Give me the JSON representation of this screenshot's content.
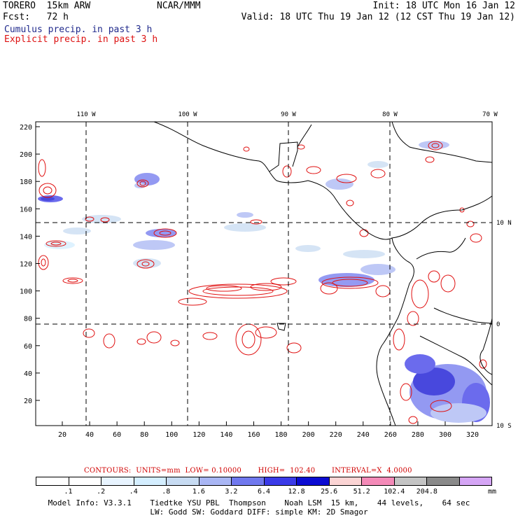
{
  "header": {
    "model_line": "TORERO  15km ARW",
    "org": "NCAR/MMM",
    "init": "Init: 18 UTC Mon 16 Jan 12",
    "fcst": "Fcst:   72 h",
    "valid": "Valid: 18 UTC Thu 19 Jan 12 (12 CST Thu 19 Jan 12)",
    "cumulus_label": "Cumulus precip. in past 3 h",
    "explicit_label": "Explicit precip. in past 3 h"
  },
  "colors": {
    "cumulus_text": "#202a8c",
    "explicit_text": "#dd1111",
    "contour": "#e01010",
    "coast": "#000000"
  },
  "map": {
    "top_lon_labels": [
      "110 W",
      "100 W",
      "90 W",
      "80 W",
      "70 W"
    ],
    "right_lat_labels": [
      "10 N",
      "0",
      "10 S"
    ],
    "y_ticks": [
      "220",
      "200",
      "180",
      "160",
      "140",
      "120",
      "100",
      "80",
      "60",
      "40",
      "20"
    ],
    "x_ticks": [
      "20",
      "40",
      "60",
      "80",
      "100",
      "120",
      "140",
      "160",
      "180",
      "200",
      "220",
      "240",
      "260",
      "280",
      "300",
      "320"
    ]
  },
  "contours_line": "CONTOURS:  UNITS=mm  LOW= 0.10000       HIGH=  102.40       INTERVAL=X  4.0000",
  "legend": {
    "units": "mm",
    "labels": [
      ".1",
      ".2",
      ".4",
      ".8",
      "1.6",
      "3.2",
      "6.4",
      "12.8",
      "25.6",
      "51.2",
      "102.4",
      "204.8"
    ],
    "colors": [
      "#ffffff",
      "#ffffff",
      "#e8f4ff",
      "#d4eeff",
      "#c7dbf2",
      "#a9b6f4",
      "#7078ee",
      "#3a3ae8",
      "#0b0bd2",
      "#fbd4d4",
      "#f48ab8",
      "#c4c4c4",
      "#8a8a8a",
      "#d5a5f5"
    ]
  },
  "info_line1": "Model Info: V3.3.1    Tiedtke YSU PBL  Thompson    Noah LSM  15 km,    44 levels,    64 sec",
  "info_line2": "LW: Godd SW: Goddard DIFF: simple KM: 2D Smagor"
}
